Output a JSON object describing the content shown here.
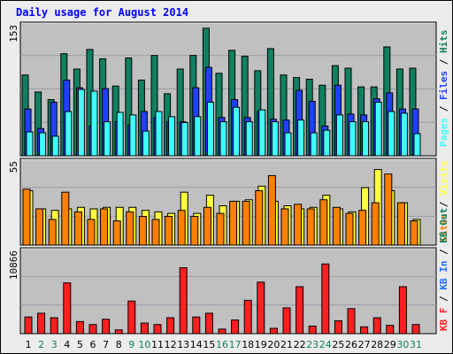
{
  "title": "Daily usage for August 2014",
  "colors": {
    "pages": "#40ffff",
    "files": "#2040ff",
    "hits": "#108060",
    "visits": "#ffff40",
    "sites": "#ff8000",
    "kbin": "#2070ff",
    "kbout": "#108060",
    "kbf": "#ff2020",
    "weekday": "#000000",
    "weekend": "#108060",
    "panel": "#c0c0c0"
  },
  "chart_data": [
    {
      "type": "bar",
      "panel": "traffic",
      "ymax_label": "153",
      "ymax": 153,
      "categories": [
        "1",
        "2",
        "3",
        "4",
        "5",
        "6",
        "7",
        "8",
        "9",
        "10",
        "11",
        "12",
        "13",
        "14",
        "15",
        "16",
        "17",
        "18",
        "19",
        "20",
        "21",
        "22",
        "23",
        "24",
        "25",
        "26",
        "27",
        "28",
        "29",
        "30",
        "31"
      ],
      "weekend": [
        false,
        true,
        true,
        false,
        false,
        false,
        false,
        false,
        true,
        true,
        false,
        false,
        false,
        false,
        false,
        true,
        true,
        false,
        false,
        false,
        false,
        false,
        true,
        true,
        false,
        false,
        false,
        false,
        false,
        true,
        true
      ],
      "legend": [
        "Pages",
        "Files",
        "Hits"
      ],
      "series": [
        {
          "name": "Hits",
          "color": "#108060",
          "values": [
            95,
            75,
            66,
            120,
            102,
            125,
            114,
            82,
            115,
            89,
            118,
            73,
            102,
            118,
            150,
            97,
            124,
            117,
            100,
            126,
            95,
            92,
            90,
            83,
            106,
            103,
            81,
            81,
            128,
            102,
            103
          ]
        },
        {
          "name": "Files",
          "color": "#2040ff",
          "values": [
            55,
            32,
            63,
            89,
            80,
            35,
            79,
            40,
            36,
            52,
            45,
            40,
            40,
            80,
            104,
            45,
            66,
            45,
            52,
            43,
            42,
            77,
            64,
            35,
            83,
            49,
            48,
            67,
            74,
            55,
            55
          ]
        },
        {
          "name": "Pages",
          "color": "#40ffff",
          "values": [
            28,
            27,
            23,
            52,
            78,
            76,
            40,
            51,
            48,
            29,
            52,
            46,
            39,
            46,
            63,
            40,
            57,
            40,
            54,
            40,
            27,
            42,
            27,
            30,
            48,
            40,
            40,
            63,
            52,
            50,
            26
          ]
        }
      ]
    },
    {
      "type": "bar",
      "panel": "visits",
      "ymax_label": "55",
      "ymax": 55,
      "legend": [
        "Sites",
        "Visits"
      ],
      "series": [
        {
          "name": "Visits",
          "color": "#ffff40",
          "values": [
            36,
            24,
            23,
            24,
            25,
            24,
            25,
            25,
            25,
            23,
            22,
            21,
            35,
            21,
            33,
            26,
            29,
            30,
            39,
            29,
            26,
            24,
            25,
            33,
            24,
            22,
            38,
            50,
            36,
            28,
            17
          ]
        },
        {
          "name": "Sites",
          "color": "#ff8000",
          "values": [
            37,
            24,
            17,
            35,
            22,
            17,
            24,
            16,
            22,
            19,
            17,
            19,
            23,
            19,
            25,
            21,
            29,
            29,
            36,
            46,
            24,
            27,
            24,
            30,
            25,
            21,
            23,
            28,
            47,
            28,
            16
          ]
        }
      ]
    },
    {
      "type": "bar",
      "panel": "kbytes",
      "ymax_label": "10866",
      "ymax": 10866,
      "legend": [
        "KB F",
        "KB In",
        "KB Out"
      ],
      "series": [
        {
          "name": "KB F",
          "color": "#ff2020",
          "values": [
            2200,
            2700,
            2100,
            6700,
            1600,
            1200,
            1900,
            500,
            4300,
            1400,
            1200,
            2100,
            8700,
            2200,
            2700,
            600,
            1800,
            4400,
            6800,
            700,
            3400,
            6200,
            1000,
            9200,
            1700,
            3300,
            900,
            2100,
            1100,
            6200,
            1200
          ]
        }
      ]
    }
  ]
}
